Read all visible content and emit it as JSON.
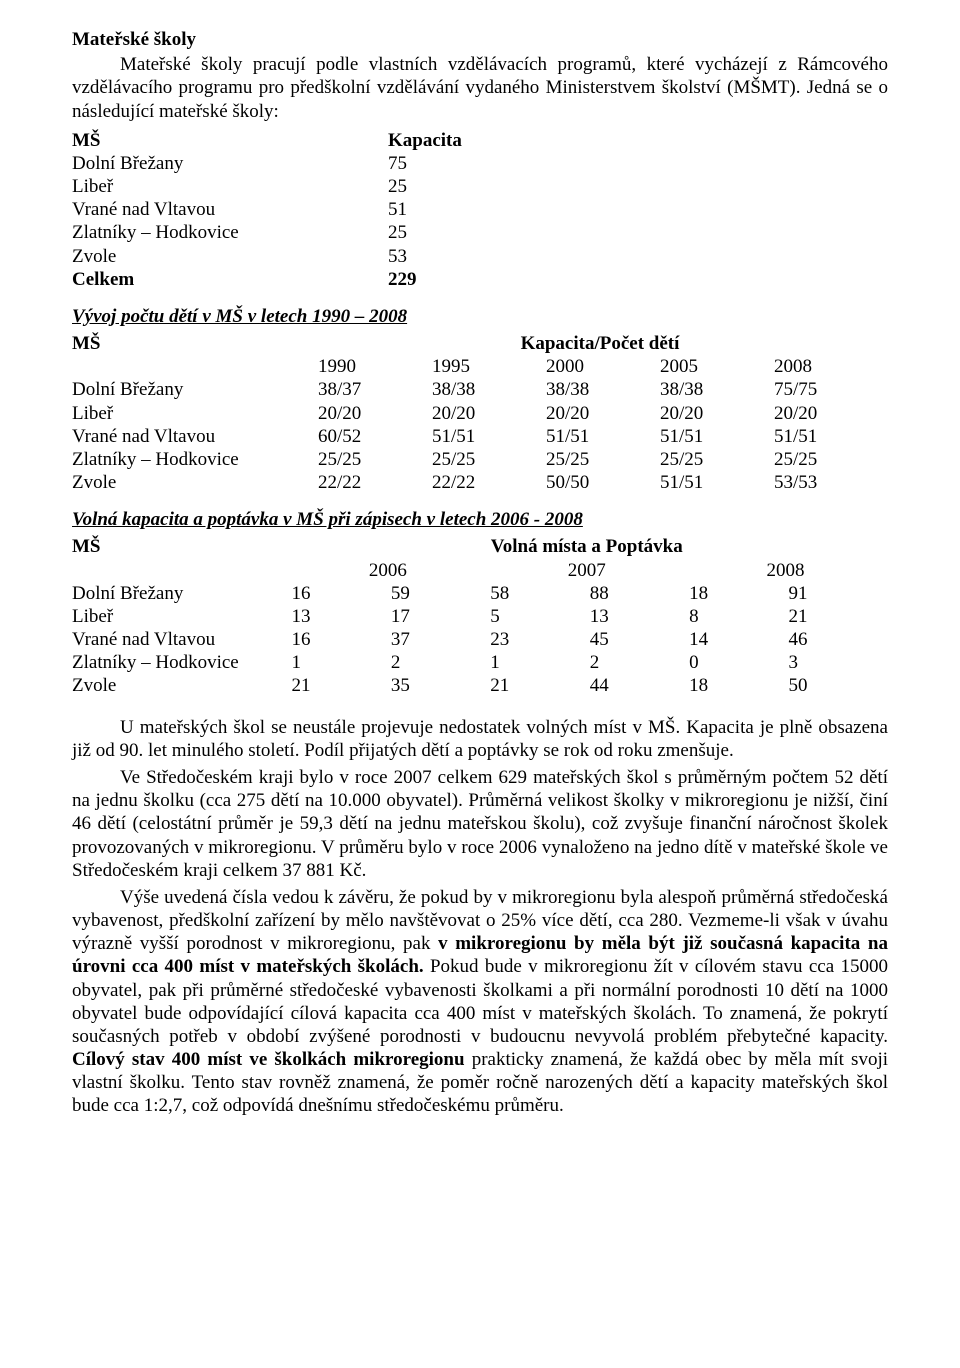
{
  "heading": "Mateřské školy",
  "intro": "Mateřské školy pracují podle vlastních vzdělávacích programů, které vycházejí z Rámcového vzdělávacího programu pro předškolní vzdělávání vydaného Ministerstvem školství (MŠMT). Jedná se o následující mateřské školy:",
  "t1": {
    "head_ms": "MŠ",
    "head_cap": "Kapacita",
    "rows": [
      {
        "name": "Dolní Břežany",
        "cap": "75"
      },
      {
        "name": "Libeř",
        "cap": "25"
      },
      {
        "name": "Vrané nad Vltavou",
        "cap": "51"
      },
      {
        "name": "Zlatníky – Hodkovice",
        "cap": "25"
      },
      {
        "name": "Zvole",
        "cap": "53"
      }
    ],
    "total_label": "Celkem",
    "total_val": "229"
  },
  "t2": {
    "title": "Vývoj počtu dětí v MŠ v letech 1990 – 2008",
    "head_ms": "MŠ",
    "head_right": "Kapacita/Počet dětí",
    "years": [
      "1990",
      "1995",
      "2000",
      "2005",
      "2008"
    ],
    "rows": [
      {
        "name": "Dolní Břežany",
        "v": [
          "38/37",
          "38/38",
          "38/38",
          "38/38",
          "75/75"
        ]
      },
      {
        "name": "Libeř",
        "v": [
          "20/20",
          "20/20",
          "20/20",
          "20/20",
          "20/20"
        ]
      },
      {
        "name": "Vrané nad Vltavou",
        "v": [
          "60/52",
          "51/51",
          "51/51",
          "51/51",
          "51/51"
        ]
      },
      {
        "name": "Zlatníky – Hodkovice",
        "v": [
          "25/25",
          "25/25",
          "25/25",
          "25/25",
          "25/25"
        ]
      },
      {
        "name": "Zvole",
        "v": [
          "22/22",
          "22/22",
          "50/50",
          "51/51",
          "53/53"
        ]
      }
    ]
  },
  "t3": {
    "title": "Volná kapacita a poptávka v MŠ při zápisech v letech 2006 - 2008",
    "head_ms": "MŠ",
    "head_right": "Volná místa a Poptávka",
    "years": [
      "2006",
      "2007",
      "2008"
    ],
    "rows": [
      {
        "name": "Dolní Břežany",
        "v": [
          "16",
          "59",
          "58",
          "88",
          "18",
          "91"
        ]
      },
      {
        "name": "Libeř",
        "v": [
          "13",
          "17",
          "5",
          "13",
          "8",
          "21"
        ]
      },
      {
        "name": "Vrané nad Vltavou",
        "v": [
          "16",
          "37",
          "23",
          "45",
          "14",
          "46"
        ]
      },
      {
        "name": "Zlatníky – Hodkovice",
        "v": [
          "1",
          "2",
          "1",
          "2",
          "0",
          "3"
        ]
      },
      {
        "name": "Zvole",
        "v": [
          "21",
          "35",
          "21",
          "44",
          "18",
          "50"
        ]
      }
    ]
  },
  "para1": "U mateřských škol se neustále projevuje nedostatek volných míst v MŠ. Kapacita je plně obsazena již od 90. let minulého století. Podíl přijatých dětí a poptávky se rok od roku zmenšuje.",
  "para2": "Ve Středočeském kraji bylo v roce 2007 celkem 629 mateřských škol s průměrným počtem 52 dětí na jednu školku (cca 275 dětí na 10.000 obyvatel). Průměrná velikost školky v mikroregionu je nižší, činí 46 dětí (celostátní průměr je 59,3 dětí na jednu mateřskou školu), což zvyšuje finanční náročnost školek provozovaných v mikroregionu. V průměru bylo v roce 2006 vynaloženo na jedno dítě v mateřské škole ve Středočeském kraji celkem 37 881 Kč.",
  "para3_a": "Výše uvedená čísla vedou k závěru, že pokud by v mikroregionu byla alespoň průměrná středočeská vybavenost, předškolní zařízení by mělo navštěvovat o 25% více dětí, cca 280. Vezmeme-li však v úvahu výrazně vyšší porodnost v mikroregionu, pak ",
  "para3_bold1": "v mikroregionu by měla být již současná kapacita na úrovni cca 400 míst v mateřských školách.",
  "para3_b": " Pokud bude v mikroregionu žít v cílovém stavu cca 15000 obyvatel, pak při průměrné středočeské vybavenosti školkami a při normální porodnosti 10 dětí na 1000 obyvatel bude odpovídající cílová kapacita cca 400 míst v mateřských školách. To znamená, že pokrytí současných potřeb v období zvýšené porodnosti v budoucnu nevyvolá problém přebytečné kapacity. ",
  "para3_bold2": "Cílový stav 400 míst ve školkách mikroregionu",
  "para3_c": " prakticky znamená, že každá obec by měla mít svoji vlastní školku. Tento stav rovněž znamená, že poměr ročně narozených dětí a kapacity mateřských škol bude cca 1:2,7, což odpovídá dnešnímu středočeskému průměru."
}
